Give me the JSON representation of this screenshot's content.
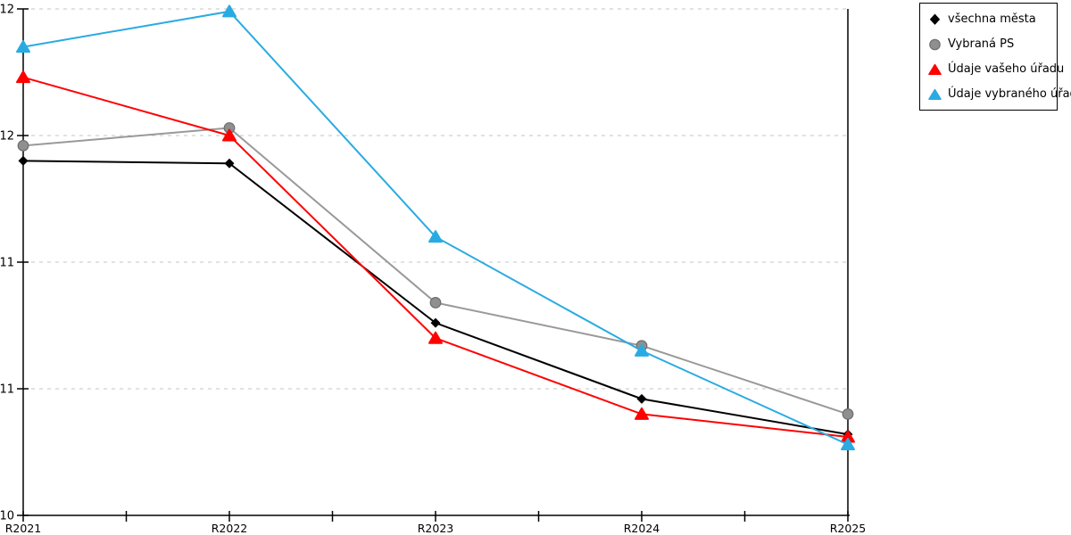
{
  "chart_data": {
    "type": "line",
    "title": "",
    "xlabel": "",
    "ylabel": "",
    "categories": [
      "R2021",
      "R2022",
      "R2023",
      "R2024",
      "R2025"
    ],
    "series": [
      {
        "name": "všechna města",
        "color": "#000000",
        "marker": "diamond",
        "values": [
          11.4,
          11.39,
          10.76,
          10.46,
          10.32
        ]
      },
      {
        "name": "Vybraná PS",
        "color": "#999999",
        "marker": "circle",
        "edge_color": "#6e6e6e",
        "fill_color": "#8f8f8f",
        "values": [
          11.46,
          11.53,
          10.84,
          10.67,
          10.4
        ]
      },
      {
        "name": "Údaje vašeho úřadu",
        "color": "#ff0000",
        "marker": "triangle",
        "values": [
          11.73,
          11.5,
          10.7,
          10.4,
          10.31
        ]
      },
      {
        "name": "Údaje vybraného úřadu",
        "color": "#29abe2",
        "marker": "triangle",
        "values": [
          11.85,
          11.99,
          11.1,
          10.65,
          10.28
        ]
      }
    ],
    "ylim": [
      10,
      12
    ],
    "yticks": [
      12,
      11.5,
      11,
      10.5,
      10
    ],
    "ytick_labels": [
      "12",
      "12",
      "11",
      "11",
      "10"
    ],
    "x_minor_ticks_per_interval": 1,
    "grid": "dashed-horizontal",
    "gridline_color": "#c6c6c6",
    "axis_color": "#000000",
    "legend_position": "top-right"
  }
}
